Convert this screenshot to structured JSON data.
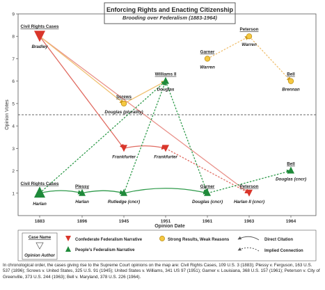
{
  "chart_data": {
    "type": "diagram",
    "title": "Enforcing Rights and Enacting Citizenship",
    "subtitle": "Brooding over Federalism (1883-1964)",
    "ylabel": "Opinion Votes",
    "xlabel": "Opinion Date",
    "ylim": [
      0,
      9
    ],
    "yticks": [
      "1",
      "2",
      "3",
      "4",
      "5",
      "6",
      "7",
      "8",
      "9"
    ],
    "xticks": [
      "1883",
      "1896",
      "1945",
      "1951",
      "1961",
      "1963",
      "1964"
    ],
    "threshold": 4.5,
    "grid": false,
    "nodes": [
      {
        "id": "bradley",
        "case": "Civil Rights Cases",
        "author": "Bradley",
        "year_index": 0,
        "votes": 8,
        "kind": "confederate",
        "large": true
      },
      {
        "id": "harlan1883",
        "case": "Civil Rights Cases",
        "author": "Harlan",
        "year_index": 0,
        "votes": 1,
        "kind": "peoples",
        "large": true
      },
      {
        "id": "plessy",
        "case": "Plessy",
        "author": "Harlan",
        "year_index": 1,
        "votes": 1,
        "kind": "peoples"
      },
      {
        "id": "rutledge",
        "case": "",
        "author": "Rutledge (cncr)",
        "year_index": 2,
        "votes": 1,
        "kind": "peoples"
      },
      {
        "id": "screws",
        "case": "Screws",
        "author": "Douglas (plurality)",
        "year_index": 2,
        "votes": 5,
        "kind": "strong"
      },
      {
        "id": "frank45",
        "case": "",
        "author": "Frankfurter",
        "year_index": 2,
        "votes": 3,
        "kind": "confederate"
      },
      {
        "id": "williams",
        "case": "Williams II",
        "author": "Douglas",
        "year_index": 3,
        "votes": 6,
        "kind": "peoples"
      },
      {
        "id": "frank51",
        "case": "",
        "author": "Frankfurter",
        "year_index": 3,
        "votes": 3,
        "kind": "confederate"
      },
      {
        "id": "garner_w",
        "case": "Garner",
        "author": "Warren",
        "year_index": 4,
        "votes": 7,
        "kind": "strong"
      },
      {
        "id": "garner_d",
        "case": "Garner",
        "author": "Douglas (cncr)",
        "year_index": 4,
        "votes": 1,
        "kind": "peoples"
      },
      {
        "id": "peterson_w",
        "case": "Peterson",
        "author": "Warren",
        "year_index": 5,
        "votes": 8,
        "kind": "strong"
      },
      {
        "id": "peterson_h",
        "case": "Peterson",
        "author": "Harlan II (cncr)",
        "year_index": 5,
        "votes": 1,
        "kind": "confederate"
      },
      {
        "id": "bell_b",
        "case": "Bell",
        "author": "Brennan",
        "year_index": 6,
        "votes": 6,
        "kind": "strong"
      },
      {
        "id": "bell_d",
        "case": "Bell",
        "author": "Douglas (cncr)",
        "year_index": 6,
        "votes": 2,
        "kind": "peoples"
      }
    ],
    "links": [
      {
        "from": "bradley",
        "to": "frank45",
        "style": "direct",
        "color": "#e06a60"
      },
      {
        "from": "bradley",
        "to": "peterson_h",
        "style": "direct",
        "color": "#e9918a"
      },
      {
        "from": "bradley",
        "to": "screws",
        "style": "direct",
        "color": "#f0c070"
      },
      {
        "from": "screws",
        "to": "williams",
        "style": "direct",
        "color": "#f0c070"
      },
      {
        "from": "frank45",
        "to": "frank51",
        "style": "direct",
        "color": "#e06a60"
      },
      {
        "from": "frank51",
        "to": "peterson_h",
        "style": "implied",
        "color": "#e06a60"
      },
      {
        "from": "harlan1883",
        "to": "plessy",
        "style": "direct",
        "color": "#2e9a4a"
      },
      {
        "from": "plessy",
        "to": "rutledge",
        "style": "direct",
        "color": "#2e9a4a"
      },
      {
        "from": "rutledge",
        "to": "garner_d",
        "style": "direct",
        "color": "#2e9a4a"
      },
      {
        "from": "garner_d",
        "to": "bell_d",
        "style": "implied",
        "color": "#2e9a4a"
      },
      {
        "from": "harlan1883",
        "to": "williams",
        "style": "implied",
        "color": "#2e9a4a"
      },
      {
        "from": "rutledge",
        "to": "williams",
        "style": "implied",
        "color": "#2e9a4a"
      },
      {
        "from": "williams",
        "to": "garner_d",
        "style": "implied",
        "color": "#2e9a4a"
      },
      {
        "from": "garner_w",
        "to": "peterson_w",
        "style": "implied",
        "color": "#f0c070"
      },
      {
        "from": "peterson_w",
        "to": "bell_b",
        "style": "implied",
        "color": "#f0c070"
      }
    ],
    "legend": {
      "case_name": "Case Name",
      "opinion_author": "Opinion Author",
      "confederate": "Confederate Federalism Narrative",
      "peoples": "People's Federalism Narrative",
      "strong": "Strong Results, Weak Reasons",
      "direct": "Direct Citation",
      "implied": "Implied Connection"
    },
    "colors": {
      "confederate": "#d9362b",
      "peoples": "#1f8a3a",
      "strong": "#f5c842",
      "strong_stroke": "#b88a10",
      "threshold": "#333333",
      "axis": "#444444"
    }
  },
  "caption": "In chronological order, the cases giving rise to the Supreme Court opinions on the map are: Civil Rights Cases, 109 U.S. 3 (1883); Plessy v. Ferguson, 163 U.S. 537 (1896); Screws v. United States, 325 U.S. 91 (1945); United States v. Williams, 341 US 97 (1951); Garner v. Louisiana, 368 U.S. 157 (1961); Peterson v. City of Greenville, 373 U.S. 244 (1963); Bell v. Maryland, 378 U.S. 226 (1964)."
}
